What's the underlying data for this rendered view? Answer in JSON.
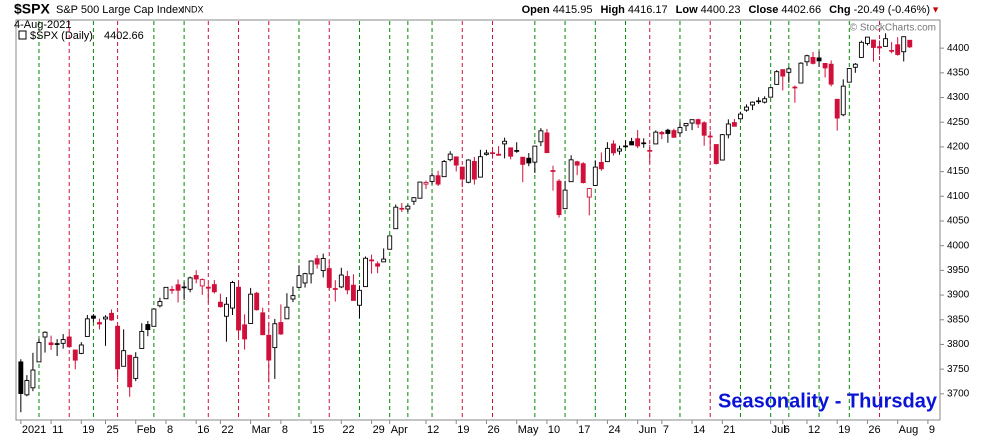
{
  "header": {
    "symbol": "$SPX",
    "name": "S&P 500 Large Cap Index",
    "exchange": "INDX",
    "date": "4-Aug-2021",
    "quote": [
      {
        "label": "Open",
        "value": "4415.95"
      },
      {
        "label": "High",
        "value": "4416.17"
      },
      {
        "label": "Low",
        "value": "4400.23"
      },
      {
        "label": "Close",
        "value": "4402.66"
      },
      {
        "label": "Chg",
        "value": "-20.49 (-0.46%)"
      }
    ],
    "legend": "$SPX (Daily)",
    "legend_value": "4402.66",
    "copyright": "© StockCharts.com"
  },
  "chart_data": {
    "type": "candlestick",
    "annotation": "Seasonality - Thursday",
    "open": [
      3764.61,
      3698.02,
      3712.2,
      3764.71,
      3815.05,
      3803.14,
      3801.62,
      3802.23,
      3814.98,
      3788.73,
      3781.88,
      3816.22,
      3857.46,
      3844.24,
      3851.68,
      3862.96,
      3836.83,
      3755.75,
      3778.05,
      3731.17,
      3791.84,
      3840.27,
      3836.66,
      3878.3,
      3892.59,
      3910.49,
      3920.78,
      3916.4,
      3911.65,
      3939.61,
      3918.5,
      3915.86,
      3921.16,
      3885.55,
      3857.07,
      3873.71,
      3915.8,
      3839.66,
      3842.51,
      3903.64,
      3863.99,
      3818.53,
      3793.58,
      3844.39,
      3851.93,
      3891.99,
      3915.54,
      3924.52,
      3942.96,
      3973.59,
      3949.57,
      3953.5,
      3913.14,
      3916.48,
      3937.6,
      3919.93,
      3879.34,
      3917.12,
      3969.31,
      3963.34,
      3967.25,
      3992.78,
      4034.44,
      4075.57,
      4074.29,
      4089.95,
      4096.11,
      4124.71,
      4130.1,
      4141.58,
      4139.76,
      4174.14,
      4179.8,
      4159.18,
      4128.42,
      4170.46,
      4138.78,
      4185.03,
      4188.25,
      4185.14,
      4206.14,
      4198.1,
      4191.98,
      4179.04,
      4177.06,
      4169.14,
      4210.34,
      4228.29,
      4150.34,
      4130.55,
      4074.99,
      4129.58,
      4169.92,
      4165.94,
      4098.45,
      4121.97,
      4168.61,
      4170.16,
      4205.94,
      4191.59,
      4201.94,
      4210.77,
      4216.52,
      4206.82,
      4191.43,
      4206.05,
      4229.34,
      4233.81,
      4232.99,
      4228.56,
      4242.9,
      4248.31,
      4255.28,
      4248.87,
      4220.37,
      4204.78,
      4173.4,
      4224.61,
      4249.27,
      4256.97,
      4274.45,
      4284.9,
      4293.21,
      4290.65,
      4300.73,
      4326.6,
      4356.46,
      4351.01,
      4321.07,
      4329.38,
      4372.41,
      4381.07,
      4380.11,
      4369.02,
      4367.43,
      4296.4,
      4265.11,
      4331.13,
      4361.27,
      4381.2,
      4409.58,
      4416.38,
      4402.95,
      4403.59,
      4395.12,
      4406.86,
      4392.74,
      4415.95
    ],
    "high": [
      3769.99,
      3737.83,
      3783.04,
      3811.55,
      3826.69,
      3817.86,
      3810.78,
      3820.96,
      3823.6,
      3788.73,
      3804.53,
      3859.75,
      3861.45,
      3852.31,
      3859.23,
      3870.9,
      3836.83,
      3830.5,
      3778.05,
      3784.32,
      3843.09,
      3847.51,
      3872.42,
      3894.56,
      3915.77,
      3918.35,
      3931.5,
      3925.99,
      3937.23,
      3950.43,
      3933.61,
      3921.98,
      3930.41,
      3902.92,
      3895.98,
      3928.65,
      3925.02,
      3861.08,
      3914.5,
      3906.41,
      3874.47,
      3843.67,
      3851.69,
      3881.06,
      3903.76,
      3917.35,
      3960.27,
      3944.99,
      3970.08,
      3981.04,
      3983.87,
      3969.62,
      3930.12,
      3955.31,
      3949.13,
      3942.08,
      3919.54,
      3978.19,
      3981.83,
      3968.01,
      3994.41,
      4020.63,
      4083.42,
      4086.23,
      4083.13,
      4098.19,
      4129.48,
      4131.76,
      4148.0,
      4151.69,
      4173.49,
      4191.31,
      4180.81,
      4159.18,
      4175.02,
      4179.57,
      4194.17,
      4194.19,
      4193.35,
      4201.53,
      4218.78,
      4198.1,
      4209.39,
      4179.04,
      4187.72,
      4202.7,
      4238.04,
      4236.39,
      4162.04,
      4134.73,
      4131.58,
      4183.13,
      4171.92,
      4169.15,
      4116.93,
      4172.8,
      4188.72,
      4209.52,
      4213.42,
      4202.61,
      4213.38,
      4218.36,
      4234.12,
      4217.37,
      4204.39,
      4233.45,
      4232.34,
      4236.74,
      4237.09,
      4249.74,
      4248.38,
      4255.59,
      4257.16,
      4251.89,
      4232.29,
      4204.78,
      4226.24,
      4255.84,
      4256.6,
      4271.28,
      4286.12,
      4292.14,
      4300.52,
      4302.43,
      4320.66,
      4355.43,
      4356.46,
      4361.88,
      4324.32,
      4371.6,
      4386.68,
      4392.37,
      4393.68,
      4369.02,
      4375.09,
      4296.4,
      4336.84,
      4359.7,
      4369.87,
      4415.18,
      4422.73,
      4416.38,
      4415.47,
      4429.97,
      4412.25,
      4422.18,
      4423.79,
      4416.17
    ],
    "low": [
      3662.71,
      3695.07,
      3705.34,
      3764.71,
      3783.6,
      3789.02,
      3776.51,
      3791.5,
      3792.86,
      3749.62,
      3780.37,
      3816.22,
      3845.05,
      3830.41,
      3797.16,
      3847.78,
      3732.48,
      3755.75,
      3694.12,
      3725.62,
      3791.84,
      3816.68,
      3836.66,
      3874.93,
      3892.59,
      3902.64,
      3884.94,
      3890.39,
      3905.78,
      3923.85,
      3900.43,
      3885.03,
      3903.07,
      3874.71,
      3805.59,
      3859.6,
      3814.04,
      3789.54,
      3842.51,
      3868.57,
      3818.86,
      3723.34,
      3730.19,
      3819.25,
      3851.93,
      3885.73,
      3915.54,
      3915.21,
      3923.54,
      3953.44,
      3935.74,
      3910.86,
      3886.75,
      3914.16,
      3901.57,
      3889.07,
      3853.5,
      3917.12,
      3943.25,
      3944.35,
      3966.98,
      3992.78,
      4034.44,
      4068.14,
      4068.31,
      4082.54,
      4095.51,
      4114.82,
      4124.43,
      4120.87,
      4139.76,
      4170.75,
      4150.47,
      4118.38,
      4126.35,
      4123.69,
      4138.78,
      4182.36,
      4176.22,
      4181.78,
      4176.81,
      4174.85,
      4188.03,
      4128.59,
      4160.94,
      4147.33,
      4201.64,
      4188.13,
      4111.53,
      4056.88,
      4074.99,
      4129.58,
      4142.69,
      4125.99,
      4061.41,
      4121.97,
      4151.72,
      4170.16,
      4182.52,
      4184.11,
      4197.78,
      4203.57,
      4197.59,
      4198.27,
      4167.93,
      4206.05,
      4215.66,
      4208.41,
      4218.74,
      4220.34,
      4232.25,
      4234.07,
      4238.35,
      4202.45,
      4196.05,
      4164.4,
      4173.4,
      4217.27,
      4241.43,
      4256.97,
      4271.16,
      4274.67,
      4287.04,
      4287.96,
      4300.73,
      4326.6,
      4314.37,
      4329.79,
      4289.52,
      4329.38,
      4364.03,
      4366.92,
      4362.36,
      4340.7,
      4322.53,
      4233.13,
      4262.05,
      4331.13,
      4350.06,
      4381.2,
      4405.45,
      4372.51,
      4387.01,
      4403.59,
      4389.65,
      4384.81,
      4373.0,
      4400.23
    ],
    "close": [
      3700.65,
      3726.86,
      3748.14,
      3803.79,
      3824.68,
      3799.61,
      3801.19,
      3809.84,
      3795.54,
      3768.25,
      3798.91,
      3851.85,
      3853.07,
      3841.47,
      3855.36,
      3849.62,
      3750.77,
      3787.38,
      3714.24,
      3773.86,
      3826.31,
      3830.17,
      3871.74,
      3886.83,
      3915.59,
      3911.23,
      3909.88,
      3916.38,
      3934.83,
      3932.59,
      3931.33,
      3913.97,
      3906.71,
      3876.5,
      3881.37,
      3925.43,
      3829.34,
      3811.15,
      3901.82,
      3870.29,
      3819.72,
      3768.47,
      3841.94,
      3821.35,
      3875.44,
      3898.81,
      3939.34,
      3943.34,
      3968.94,
      3962.71,
      3974.12,
      3915.46,
      3913.1,
      3940.59,
      3910.52,
      3889.14,
      3909.52,
      3974.54,
      3971.09,
      3958.55,
      3972.89,
      4019.87,
      4077.91,
      4073.94,
      4079.95,
      4097.17,
      4128.8,
      4127.99,
      4141.59,
      4124.66,
      4170.42,
      4185.47,
      4163.26,
      4134.94,
      4173.42,
      4134.98,
      4180.17,
      4187.62,
      4186.72,
      4183.18,
      4211.47,
      4181.17,
      4192.66,
      4164.66,
      4167.59,
      4201.62,
      4232.6,
      4188.43,
      4152.1,
      4063.04,
      4112.5,
      4173.85,
      4163.29,
      4127.83,
      4115.68,
      4159.12,
      4155.86,
      4197.05,
      4188.13,
      4195.99,
      4200.88,
      4204.11,
      4202.04,
      4208.12,
      4192.85,
      4229.89,
      4226.52,
      4227.26,
      4219.55,
      4239.18,
      4247.44,
      4255.15,
      4246.59,
      4223.7,
      4221.86,
      4166.45,
      4224.79,
      4246.44,
      4241.84,
      4266.49,
      4280.7,
      4290.61,
      4291.8,
      4297.5,
      4319.94,
      4352.34,
      4343.54,
      4358.13,
      4320.82,
      4369.55,
      4384.63,
      4369.21,
      4374.3,
      4360.03,
      4327.16,
      4258.49,
      4323.06,
      4358.69,
      4367.48,
      4411.79,
      4422.3,
      4401.46,
      4400.64,
      4419.15,
      4395.26,
      4387.16,
      4423.15,
      4402.66
    ],
    "thursdays": [
      3,
      8,
      12,
      16,
      22,
      27,
      31,
      36,
      41,
      46,
      51,
      56,
      61,
      64,
      68,
      73,
      78,
      85,
      90,
      95,
      100,
      104,
      109,
      114,
      119,
      124,
      127,
      132,
      137,
      142
    ],
    "up_color": "#008a00",
    "down_color": "#d0103a",
    "candle_color": "#000000",
    "annotation_color": "#0a14d6",
    "xlim": [
      -0.8,
      152
    ],
    "ylim": [
      3647,
      4457
    ],
    "xticks": [
      {
        "value": 0,
        "label": "2021"
      },
      {
        "value": 5,
        "label": "11"
      },
      {
        "value": 10,
        "label": "19"
      },
      {
        "value": 14,
        "label": "25"
      },
      {
        "value": 19,
        "label": "Feb"
      },
      {
        "value": 24,
        "label": "8"
      },
      {
        "value": 29,
        "label": "16"
      },
      {
        "value": 33,
        "label": "22"
      },
      {
        "value": 38,
        "label": "Mar"
      },
      {
        "value": 43,
        "label": "8"
      },
      {
        "value": 48,
        "label": "15"
      },
      {
        "value": 53,
        "label": "22"
      },
      {
        "value": 58,
        "label": "29"
      },
      {
        "value": 61,
        "label": "Apr"
      },
      {
        "value": 67,
        "label": "12"
      },
      {
        "value": 72,
        "label": "19"
      },
      {
        "value": 77,
        "label": "26"
      },
      {
        "value": 82,
        "label": "May"
      },
      {
        "value": 87,
        "label": "10"
      },
      {
        "value": 92,
        "label": "17"
      },
      {
        "value": 97,
        "label": "24"
      },
      {
        "value": 102,
        "label": "Jun"
      },
      {
        "value": 106,
        "label": "7"
      },
      {
        "value": 111,
        "label": "14"
      },
      {
        "value": 116,
        "label": "21"
      },
      {
        "value": 124,
        "label": "Jul"
      },
      {
        "value": 126,
        "label": "6"
      },
      {
        "value": 130,
        "label": "12"
      },
      {
        "value": 135,
        "label": "19"
      },
      {
        "value": 140,
        "label": "26"
      },
      {
        "value": 145,
        "label": "Aug"
      },
      {
        "value": 150,
        "label": "9"
      }
    ],
    "yticks": [
      3700,
      3750,
      3800,
      3850,
      3900,
      3950,
      4000,
      4050,
      4100,
      4150,
      4200,
      4250,
      4300,
      4350,
      4400
    ],
    "grid": false
  }
}
